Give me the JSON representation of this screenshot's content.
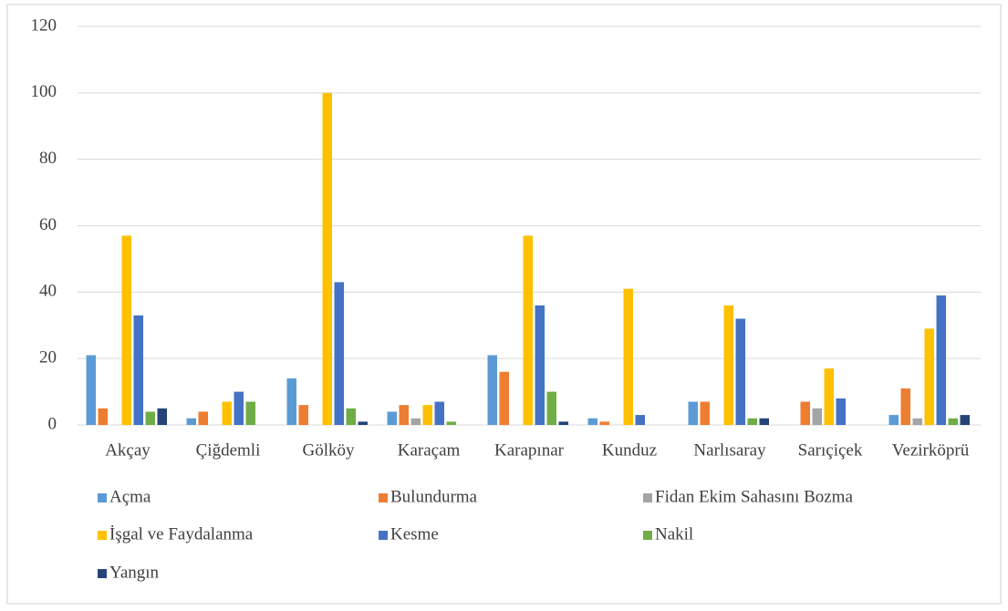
{
  "chart_data": {
    "type": "bar",
    "categories": [
      "Akçay",
      "Çiğdemli",
      "Gölköy",
      "Karaçam",
      "Karapınar",
      "Kunduz",
      "Narlısaray",
      "Sarıçiçek",
      "Vezirköprü"
    ],
    "series": [
      {
        "name": "Açma",
        "color": "#5b9bd5",
        "values": [
          21,
          2,
          14,
          4,
          21,
          2,
          7,
          0,
          3
        ]
      },
      {
        "name": "Bulundurma",
        "color": "#ed7d31",
        "values": [
          5,
          4,
          6,
          6,
          16,
          1,
          7,
          7,
          11
        ]
      },
      {
        "name": "Fidan Ekim Sahasını Bozma",
        "color": "#a5a5a5",
        "values": [
          0,
          0,
          0,
          2,
          0,
          0,
          0,
          5,
          2
        ]
      },
      {
        "name": "İşgal ve Faydalanma",
        "color": "#ffc000",
        "values": [
          57,
          7,
          100,
          6,
          57,
          41,
          36,
          17,
          29
        ]
      },
      {
        "name": "Kesme",
        "color": "#4472c4",
        "values": [
          33,
          10,
          43,
          7,
          36,
          3,
          32,
          8,
          39
        ]
      },
      {
        "name": "Nakil",
        "color": "#70ad47",
        "values": [
          4,
          7,
          5,
          1,
          10,
          0,
          2,
          0,
          2
        ]
      },
      {
        "name": "Yangın",
        "color": "#264478",
        "values": [
          5,
          0,
          1,
          0,
          1,
          0,
          2,
          0,
          3
        ]
      }
    ],
    "ylim": [
      0,
      120
    ],
    "yticks": [
      0,
      20,
      40,
      60,
      80,
      100,
      120
    ],
    "grid": true,
    "legend": "bottom"
  }
}
